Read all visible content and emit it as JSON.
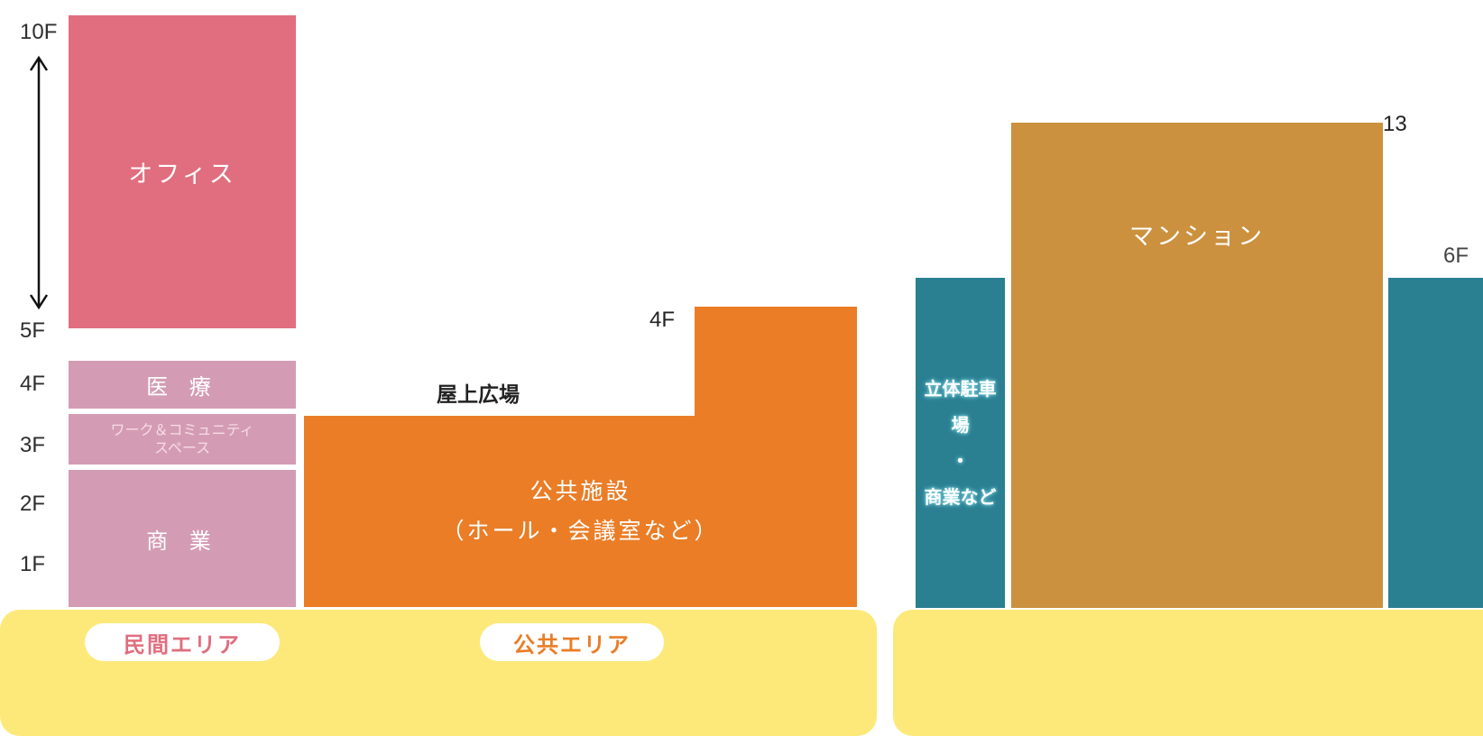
{
  "floor_scale": [
    "10F",
    "5F",
    "4F",
    "3F",
    "2F",
    "1F"
  ],
  "private_building": {
    "office": "オフィス",
    "medical": "医 療",
    "work_space_line1": "ワーク＆コミュニティ",
    "work_space_line2": "スペース",
    "commerce": "商 業"
  },
  "public_building": {
    "rooftop_plaza": "屋上広場",
    "height_label": "4F",
    "facility_line1": "公共施設",
    "facility_line2": "（ホール・会議室など）"
  },
  "right_complex": {
    "parking_line1": "立体駐車場",
    "parking_line2": "・",
    "parking_line3": "商業など",
    "mansion": "マンション",
    "mansion_height_label": "13",
    "parking_height_label": "6F"
  },
  "areas": {
    "private_area": "民間エリア",
    "public_area": "公共エリア"
  },
  "colors": {
    "office": "#e06e7e",
    "lower_floors": "#d49cb4",
    "public": "#ea7d26",
    "parking": "#2a7f91",
    "mansion": "#cb913e",
    "ground": "#fde97a",
    "private_pill_text": "#e06e7e",
    "public_pill_text": "#ea7d26"
  }
}
